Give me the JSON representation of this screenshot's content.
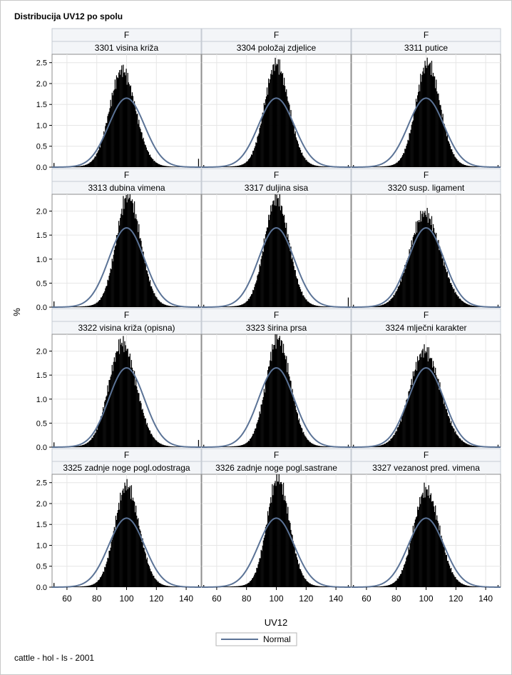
{
  "title": "Distribucija UV12 po spolu",
  "footnote": "cattle - hol - ls - 2001",
  "chart_data": {
    "type": "histogram-panel",
    "title": "Distribucija UV12 po spolu",
    "xlabel": "UV12",
    "ylabel": "%",
    "xlim": [
      50,
      150
    ],
    "xticks": [
      60,
      80,
      100,
      120,
      140
    ],
    "row_ylims": [
      [
        0,
        2.7
      ],
      [
        0,
        2.35
      ],
      [
        0,
        2.35
      ],
      [
        0,
        2.7
      ]
    ],
    "row_yticks": [
      [
        0.0,
        0.5,
        1.0,
        1.5,
        2.0,
        2.5
      ],
      [
        0.0,
        0.5,
        1.0,
        1.5,
        2.0
      ],
      [
        0.0,
        0.5,
        1.0,
        1.5,
        2.0
      ],
      [
        0.0,
        0.5,
        1.0,
        1.5,
        2.0,
        2.5
      ]
    ],
    "legend": {
      "position": "bottom",
      "entries": [
        "Normal"
      ]
    },
    "normal_curve": {
      "mean": 100,
      "sd": 24,
      "peak_percent": 1.65,
      "color": "#5b7396"
    },
    "bar_color": "#000000",
    "gridlines": true,
    "panels": [
      {
        "sex": "F",
        "label": "3301 visina križa",
        "peak": 2.2,
        "sigma": 8.0,
        "mode": 97,
        "end_spike": 0.2,
        "start_spike": 0.1
      },
      {
        "sex": "F",
        "label": "3304 položaj zdjelice",
        "peak": 2.35,
        "sigma": 7.5,
        "mode": 100,
        "end_spike": 0.05,
        "start_spike": 0.05
      },
      {
        "sex": "F",
        "label": "3311 putice",
        "peak": 2.35,
        "sigma": 7.5,
        "mode": 101,
        "end_spike": 0.05,
        "start_spike": 0.05
      },
      {
        "sex": "F",
        "label": "3313 dubina vimena",
        "peak": 2.2,
        "sigma": 7.5,
        "mode": 101,
        "end_spike": 0.05,
        "start_spike": 0.12
      },
      {
        "sex": "F",
        "label": "3317 duljina sisa",
        "peak": 2.15,
        "sigma": 7.5,
        "mode": 100,
        "end_spike": 0.2,
        "start_spike": 0.05
      },
      {
        "sex": "F",
        "label": "3320 susp. ligament",
        "peak": 1.85,
        "sigma": 9.5,
        "mode": 99,
        "end_spike": 0.05,
        "start_spike": 0.05
      },
      {
        "sex": "F",
        "label": "3322 visina križa (opisna)",
        "peak": 2.05,
        "sigma": 8.5,
        "mode": 97,
        "end_spike": 0.15,
        "start_spike": 0.1
      },
      {
        "sex": "F",
        "label": "3323 širina prsa",
        "peak": 2.15,
        "sigma": 7.5,
        "mode": 101,
        "end_spike": 0.05,
        "start_spike": 0.05
      },
      {
        "sex": "F",
        "label": "3324 mlječni karakter",
        "peak": 1.9,
        "sigma": 9.5,
        "mode": 99,
        "end_spike": 0.05,
        "start_spike": 0.05
      },
      {
        "sex": "F",
        "label": "3325 zadnje noge pogl.odostraga",
        "peak": 2.3,
        "sigma": 7.5,
        "mode": 100,
        "end_spike": 0.05,
        "start_spike": 0.1
      },
      {
        "sex": "F",
        "label": "3326 zadnje noge pogl.sastrane",
        "peak": 2.45,
        "sigma": 7.0,
        "mode": 101,
        "end_spike": 0.05,
        "start_spike": 0.05
      },
      {
        "sex": "F",
        "label": "3327 vezanost pred. vimena",
        "peak": 2.2,
        "sigma": 8.0,
        "mode": 100,
        "end_spike": 0.05,
        "start_spike": 0.05
      }
    ]
  }
}
